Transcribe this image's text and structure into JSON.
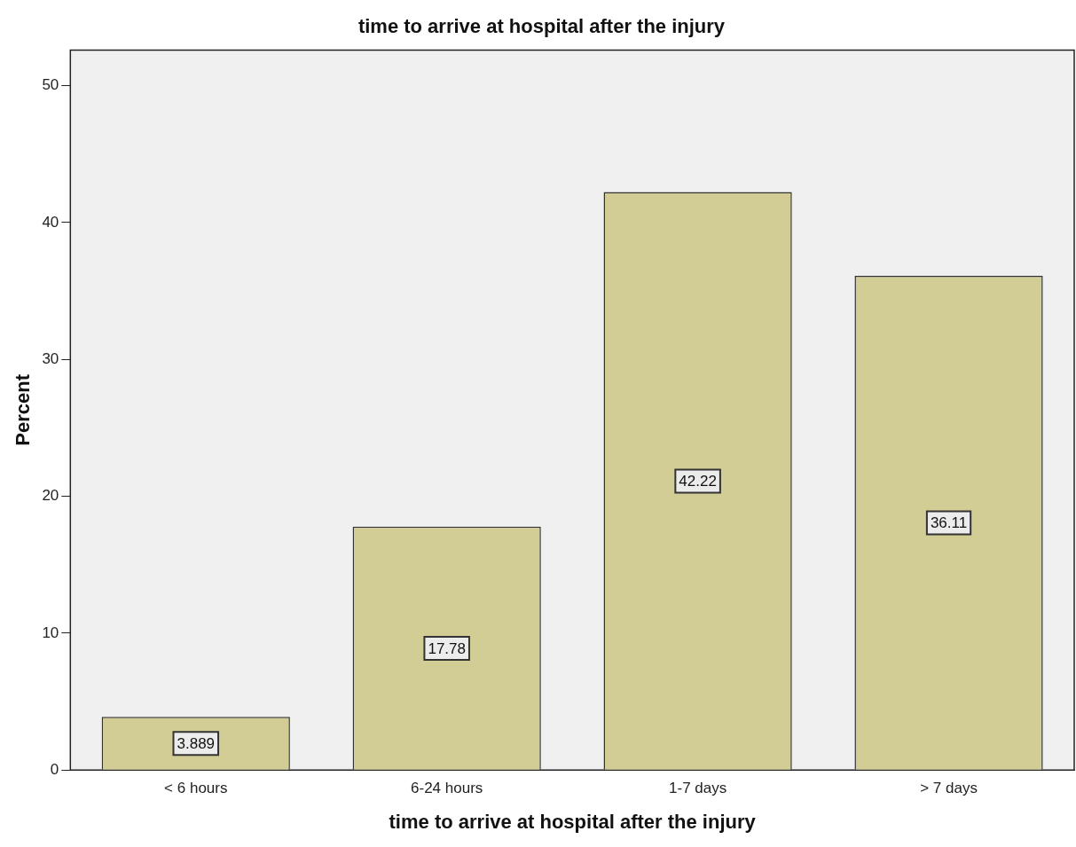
{
  "chart_data": {
    "type": "bar",
    "title": "time to arrive at hospital after the injury",
    "xlabel": "time to arrive at hospital after the injury",
    "ylabel": "Percent",
    "categories": [
      "< 6 hours",
      "6-24 hours",
      "1-7 days",
      "> 7 days"
    ],
    "values": [
      3.889,
      17.78,
      42.22,
      36.11
    ],
    "color": "#d2cd95",
    "ylim": [
      0,
      52.6
    ],
    "yticks": [
      0,
      10,
      20,
      30,
      40,
      50
    ],
    "grid": false,
    "legend": false,
    "data_labels": true
  }
}
